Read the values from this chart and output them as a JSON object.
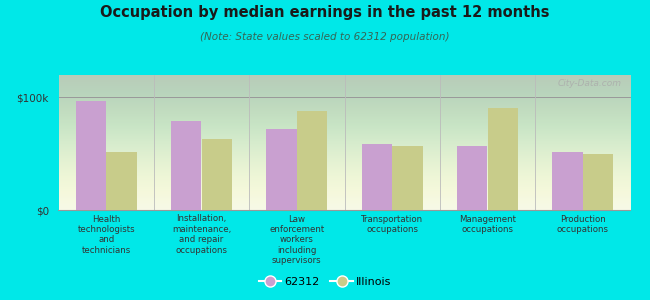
{
  "title": "Occupation by median earnings in the past 12 months",
  "subtitle": "(Note: State values scaled to 62312 population)",
  "categories": [
    "Health\ntechnologists\nand\ntechnicians",
    "Installation,\nmaintenance,\nand repair\noccupations",
    "Law\nenforcement\nworkers\nincluding\nsupervisors",
    "Transportation\noccupations",
    "Management\noccupations",
    "Production\noccupations"
  ],
  "values_62312": [
    97000,
    79000,
    72000,
    59000,
    57000,
    52000
  ],
  "values_illinois": [
    52000,
    63000,
    88000,
    57000,
    91000,
    50000
  ],
  "color_62312": "#c9a0d0",
  "color_illinois": "#c8cc8a",
  "yticks": [
    0,
    100000
  ],
  "ytick_labels": [
    "$0",
    "$100k"
  ],
  "legend_62312": "62312",
  "legend_illinois": "Illinois",
  "outer_bg": "#00e8e8",
  "watermark": "City-Data.com",
  "panel_bg_top": "#f5f8e8",
  "panel_bg_bottom": "#dde8c0"
}
